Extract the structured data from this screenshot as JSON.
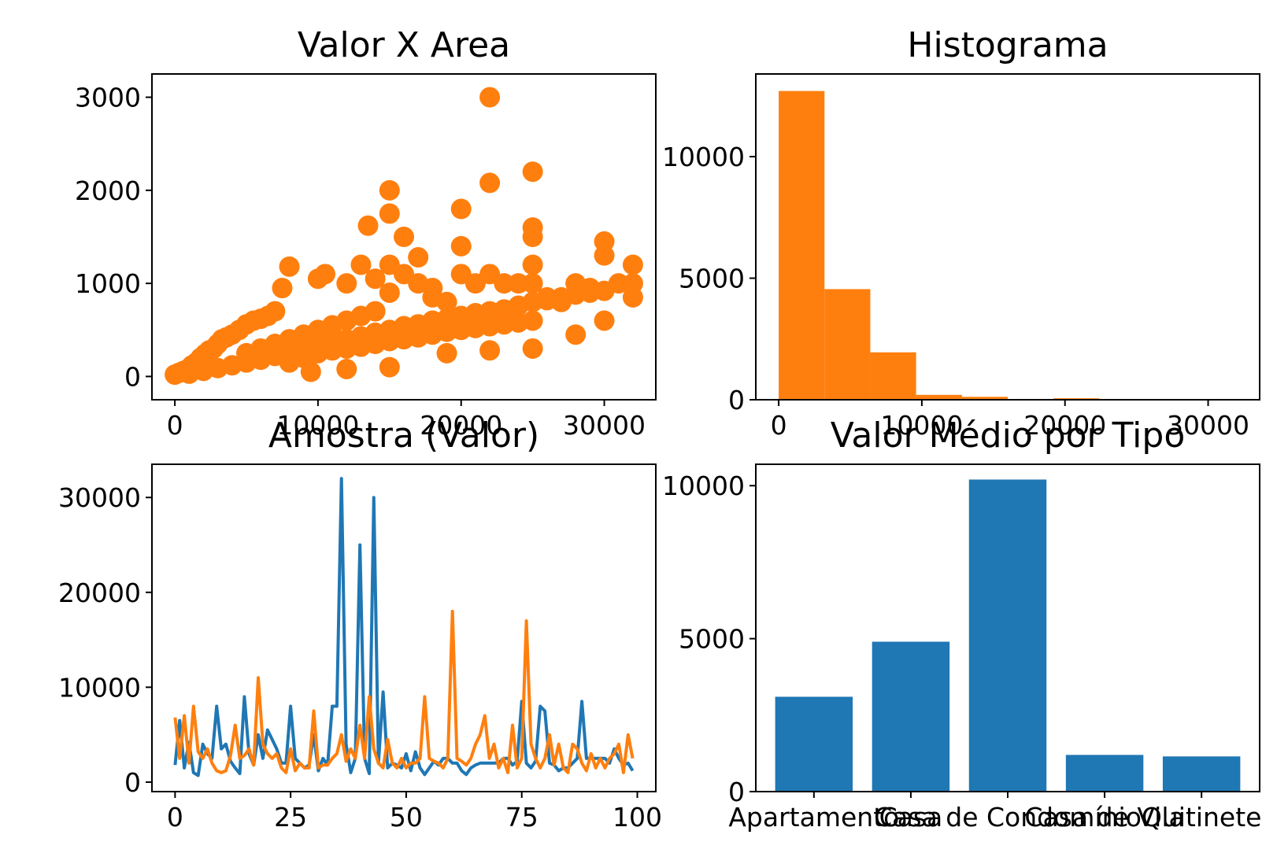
{
  "colors": {
    "blue": "#1f77b4",
    "orange": "#ff7f0e"
  },
  "chart_data": [
    {
      "type": "scatter",
      "title": "Valor X Area",
      "xlim": [
        -1600,
        33600
      ],
      "ylim": [
        -250,
        3250
      ],
      "xticks": [
        0,
        10000,
        20000,
        30000
      ],
      "xtick_labels": [
        "0",
        "10000",
        "20000",
        "30000"
      ],
      "yticks": [
        0,
        1000,
        2000,
        3000
      ],
      "ytick_labels": [
        "0",
        "1000",
        "2000",
        "3000"
      ],
      "grid": false,
      "series": [
        {
          "color": "#ff7f0e",
          "points": [
            [
              0,
              20
            ],
            [
              300,
              40
            ],
            [
              600,
              60
            ],
            [
              900,
              80
            ],
            [
              1200,
              120
            ],
            [
              1500,
              150
            ],
            [
              1800,
              200
            ],
            [
              2100,
              240
            ],
            [
              2400,
              280
            ],
            [
              2700,
              300
            ],
            [
              3000,
              350
            ],
            [
              3300,
              400
            ],
            [
              3600,
              420
            ],
            [
              4000,
              450
            ],
            [
              4500,
              500
            ],
            [
              5000,
              560
            ],
            [
              5500,
              600
            ],
            [
              6000,
              620
            ],
            [
              6500,
              650
            ],
            [
              7000,
              700
            ],
            [
              1000,
              30
            ],
            [
              2000,
              60
            ],
            [
              3000,
              90
            ],
            [
              4000,
              120
            ],
            [
              5000,
              150
            ],
            [
              6000,
              180
            ],
            [
              7000,
              220
            ],
            [
              8000,
              260
            ],
            [
              9000,
              300
            ],
            [
              10000,
              340
            ],
            [
              11000,
              380
            ],
            [
              12000,
              400
            ],
            [
              13000,
              430
            ],
            [
              14000,
              470
            ],
            [
              15000,
              500
            ],
            [
              16000,
              540
            ],
            [
              17000,
              560
            ],
            [
              18000,
              600
            ],
            [
              19000,
              620
            ],
            [
              20000,
              650
            ],
            [
              21000,
              680
            ],
            [
              22000,
              700
            ],
            [
              23000,
              720
            ],
            [
              24000,
              760
            ],
            [
              25000,
              800
            ],
            [
              26000,
              820
            ],
            [
              27000,
              850
            ],
            [
              28000,
              880
            ],
            [
              29000,
              900
            ],
            [
              30000,
              920
            ],
            [
              5000,
              250
            ],
            [
              6000,
              300
            ],
            [
              7000,
              350
            ],
            [
              8000,
              400
            ],
            [
              9000,
              450
            ],
            [
              10000,
              500
            ],
            [
              11000,
              550
            ],
            [
              12000,
              600
            ],
            [
              13000,
              650
            ],
            [
              14000,
              700
            ],
            [
              8000,
              150
            ],
            [
              9000,
              200
            ],
            [
              10000,
              250
            ],
            [
              11000,
              280
            ],
            [
              12000,
              300
            ],
            [
              13000,
              320
            ],
            [
              14000,
              350
            ],
            [
              15000,
              380
            ],
            [
              16000,
              400
            ],
            [
              17000,
              420
            ],
            [
              18000,
              450
            ],
            [
              19000,
              480
            ],
            [
              20000,
              500
            ],
            [
              21000,
              520
            ],
            [
              22000,
              540
            ],
            [
              23000,
              560
            ],
            [
              24000,
              580
            ],
            [
              25000,
              600
            ],
            [
              7500,
              950
            ],
            [
              8000,
              1180
            ],
            [
              10000,
              1050
            ],
            [
              10500,
              1100
            ],
            [
              12000,
              1000
            ],
            [
              13000,
              1200
            ],
            [
              14000,
              1050
            ],
            [
              15000,
              900
            ],
            [
              15000,
              1200
            ],
            [
              16000,
              1100
            ],
            [
              17000,
              1000
            ],
            [
              18000,
              950
            ],
            [
              18000,
              850
            ],
            [
              19000,
              800
            ],
            [
              20000,
              1100
            ],
            [
              20000,
              1400
            ],
            [
              21000,
              1000
            ],
            [
              22000,
              1100
            ],
            [
              23000,
              1000
            ],
            [
              24000,
              1000
            ],
            [
              25000,
              1000
            ],
            [
              25000,
              1200
            ],
            [
              26000,
              850
            ],
            [
              27000,
              800
            ],
            [
              28000,
              1000
            ],
            [
              29000,
              950
            ],
            [
              30000,
              1300
            ],
            [
              30000,
              1450
            ],
            [
              31000,
              1000
            ],
            [
              32000,
              1200
            ],
            [
              32000,
              1000
            ],
            [
              32000,
              850
            ],
            [
              30000,
              600
            ],
            [
              28000,
              450
            ],
            [
              25000,
              300
            ],
            [
              22000,
              280
            ],
            [
              19000,
              250
            ],
            [
              15000,
              100
            ],
            [
              12000,
              80
            ],
            [
              9500,
              50
            ],
            [
              15000,
              2000
            ],
            [
              15000,
              1750
            ],
            [
              16000,
              1500
            ],
            [
              17000,
              1280
            ],
            [
              13500,
              1620
            ],
            [
              20000,
              1800
            ],
            [
              22000,
              2080
            ],
            [
              25000,
              2200
            ],
            [
              25000,
              1600
            ],
            [
              25000,
              1500
            ],
            [
              22000,
              3000
            ]
          ]
        }
      ]
    },
    {
      "type": "bar",
      "title": "Histograma",
      "xlim": [
        -1600,
        33600
      ],
      "ylim": [
        0,
        13400
      ],
      "xticks": [
        0,
        10000,
        20000,
        30000
      ],
      "xtick_labels": [
        "0",
        "10000",
        "20000",
        "30000"
      ],
      "yticks": [
        0,
        5000,
        10000
      ],
      "ytick_labels": [
        "0",
        "5000",
        "10000"
      ],
      "grid": false,
      "bin_edges": [
        0,
        3200,
        6400,
        9600,
        12800,
        16000,
        19200,
        22400,
        25600,
        28800,
        32000
      ],
      "values": [
        12700,
        4550,
        1950,
        200,
        120,
        30,
        60,
        30,
        10,
        30
      ],
      "color": "#ff7f0e"
    },
    {
      "type": "line",
      "title": "Amostra (Valor)",
      "xlim": [
        -5,
        104
      ],
      "ylim": [
        -1000,
        33500
      ],
      "xticks": [
        0,
        25,
        50,
        75,
        100
      ],
      "xtick_labels": [
        "0",
        "25",
        "50",
        "75",
        "100"
      ],
      "yticks": [
        0,
        10000,
        20000,
        30000
      ],
      "ytick_labels": [
        "0",
        "10000",
        "20000",
        "30000"
      ],
      "grid": false,
      "series": [
        {
          "color": "#1f77b4",
          "values": [
            1800,
            6500,
            1500,
            4200,
            1000,
            700,
            4000,
            3000,
            2500,
            8000,
            3500,
            4000,
            2200,
            1500,
            900,
            9000,
            3000,
            1800,
            5000,
            2500,
            5500,
            4500,
            3500,
            2000,
            2000,
            8000,
            2500,
            2000,
            1500,
            1800,
            5000,
            1200,
            2500,
            1800,
            8000,
            8000,
            32000,
            4000,
            1000,
            2500,
            25000,
            2500,
            900,
            30000,
            2000,
            9500,
            1500,
            2000,
            1800,
            1500,
            3000,
            1200,
            3200,
            1500,
            800,
            1500,
            2200,
            1800,
            2500,
            2500,
            2000,
            2000,
            1200,
            800,
            1500,
            1800,
            2000,
            2000,
            2000,
            2000,
            2000,
            2500,
            2500,
            1800,
            2200,
            8500,
            2000,
            1500,
            2200,
            8000,
            7500,
            2000,
            1800,
            1200,
            1500,
            1500,
            2000,
            2500,
            8500,
            2500,
            2500,
            2500,
            2500,
            2500,
            2000,
            3500,
            2500,
            1800,
            2000,
            1200
          ]
        },
        {
          "color": "#ff7f0e",
          "values": [
            6800,
            2500,
            7000,
            2000,
            8000,
            3200,
            2500,
            3500,
            2000,
            1200,
            1000,
            1200,
            2800,
            6000,
            2500,
            2800,
            3500,
            1800,
            11000,
            4000,
            3000,
            2500,
            3000,
            1500,
            1000,
            3500,
            1200,
            2000,
            1500,
            1500,
            7500,
            1500,
            1800,
            1800,
            2500,
            3000,
            5000,
            2200,
            3500,
            2500,
            6000,
            2500,
            9000,
            3500,
            2000,
            1500,
            4500,
            2000,
            1500,
            2500,
            1500,
            2000,
            2000,
            2500,
            9000,
            2500,
            2200,
            2000,
            1500,
            2500,
            18000,
            2500,
            2200,
            1800,
            2500,
            4000,
            5000,
            7000,
            2500,
            4000,
            1500,
            2500,
            1000,
            6000,
            1500,
            2500,
            17000,
            4000,
            2500,
            1500,
            2500,
            5000,
            1800,
            4000,
            1500,
            1000,
            4000,
            3500,
            2000,
            1200,
            3000,
            1500,
            2500,
            1500,
            2500,
            3000,
            4000,
            1000,
            5000,
            2500
          ]
        }
      ]
    },
    {
      "type": "bar",
      "title": "Valor Médio por Tipo",
      "categories": [
        "Apartamento",
        "Casa",
        "Casa de Condomínio",
        "Casa de Vila",
        "Quitinete"
      ],
      "values": [
        3100,
        4900,
        10200,
        1200,
        1150
      ],
      "ylim": [
        0,
        10700
      ],
      "yticks": [
        0,
        5000,
        10000
      ],
      "ytick_labels": [
        "0",
        "5000",
        "10000"
      ],
      "grid": false,
      "color": "#1f77b4"
    }
  ]
}
